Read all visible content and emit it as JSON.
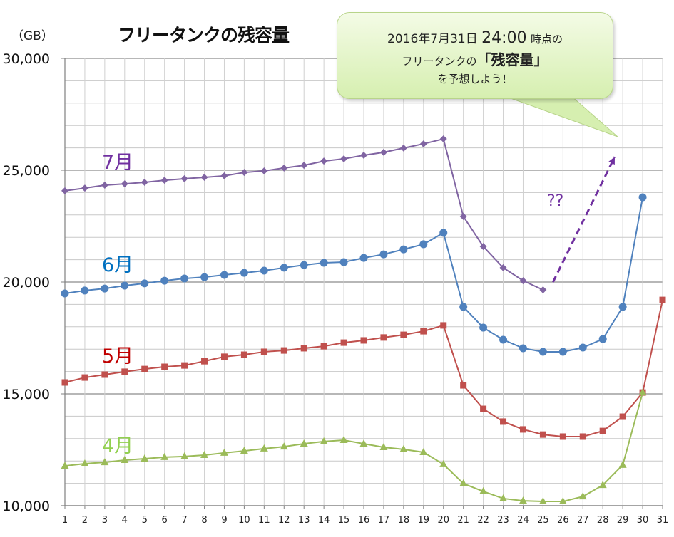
{
  "chart_data": {
    "type": "line",
    "title": "フリータンクの残容量",
    "ylabel": "（GB）",
    "xlabel": "",
    "ylim": [
      10000,
      30000
    ],
    "yticks": [
      10000,
      15000,
      20000,
      25000,
      30000
    ],
    "ytick_labels": [
      "10,000",
      "15,000",
      "20,000",
      "25,000",
      "30,000"
    ],
    "x": [
      1,
      2,
      3,
      4,
      5,
      6,
      7,
      8,
      9,
      10,
      11,
      12,
      13,
      14,
      15,
      16,
      17,
      18,
      19,
      20,
      21,
      22,
      23,
      24,
      25,
      26,
      27,
      28,
      29,
      30,
      31
    ],
    "grid": true,
    "legend": "inline labels",
    "series": [
      {
        "name": "7月",
        "color": "#8064a2",
        "label_color": "#7030a0",
        "marker": "diamond",
        "values": [
          24080,
          24200,
          24330,
          24390,
          24460,
          24550,
          24620,
          24680,
          24750,
          24900,
          24970,
          25100,
          25220,
          25410,
          25510,
          25670,
          25800,
          25990,
          26180,
          26400,
          22930,
          21590,
          20640,
          20060,
          19650
        ]
      },
      {
        "name": "6月",
        "color": "#4f81bd",
        "label_color": "#0070c0",
        "marker": "circle",
        "values": [
          19490,
          19620,
          19710,
          19840,
          19940,
          20060,
          20160,
          20220,
          20320,
          20410,
          20510,
          20640,
          20760,
          20860,
          20890,
          21080,
          21240,
          21460,
          21690,
          22200,
          18890,
          17960,
          17420,
          17040,
          16880,
          16880,
          17070,
          17450,
          18890,
          23790
        ]
      },
      {
        "name": "5月",
        "color": "#c0504d",
        "label_color": "#c00000",
        "marker": "square",
        "values": [
          15510,
          15730,
          15860,
          15990,
          16110,
          16210,
          16270,
          16460,
          16660,
          16750,
          16880,
          16940,
          17040,
          17130,
          17290,
          17390,
          17520,
          17640,
          17800,
          18060,
          15380,
          14330,
          13760,
          13410,
          13180,
          13090,
          13090,
          13340,
          13980,
          15060,
          19200
        ]
      },
      {
        "name": "4月",
        "color": "#9bbb59",
        "label_color": "#92d050",
        "marker": "triangle",
        "values": [
          11780,
          11880,
          11940,
          12040,
          12100,
          12170,
          12200,
          12260,
          12360,
          12450,
          12550,
          12640,
          12770,
          12870,
          12930,
          12770,
          12610,
          12520,
          12390,
          11850,
          10990,
          10640,
          10320,
          10220,
          10190,
          10190,
          10410,
          10920,
          11820,
          15060
        ]
      }
    ],
    "annotations": {
      "arrow": {
        "from": [
          25.5,
          20000
        ],
        "to": [
          28.6,
          25600
        ],
        "style": "dashed",
        "color": "#7030a0"
      },
      "question_text": "??"
    }
  },
  "callout": {
    "date": "2016年7月31日",
    "time": "24:00",
    "suffix": "時点の",
    "line2_prefix": "フリータンクの",
    "line2_emph": "「残容量」",
    "line3": "を予想しよう！"
  }
}
